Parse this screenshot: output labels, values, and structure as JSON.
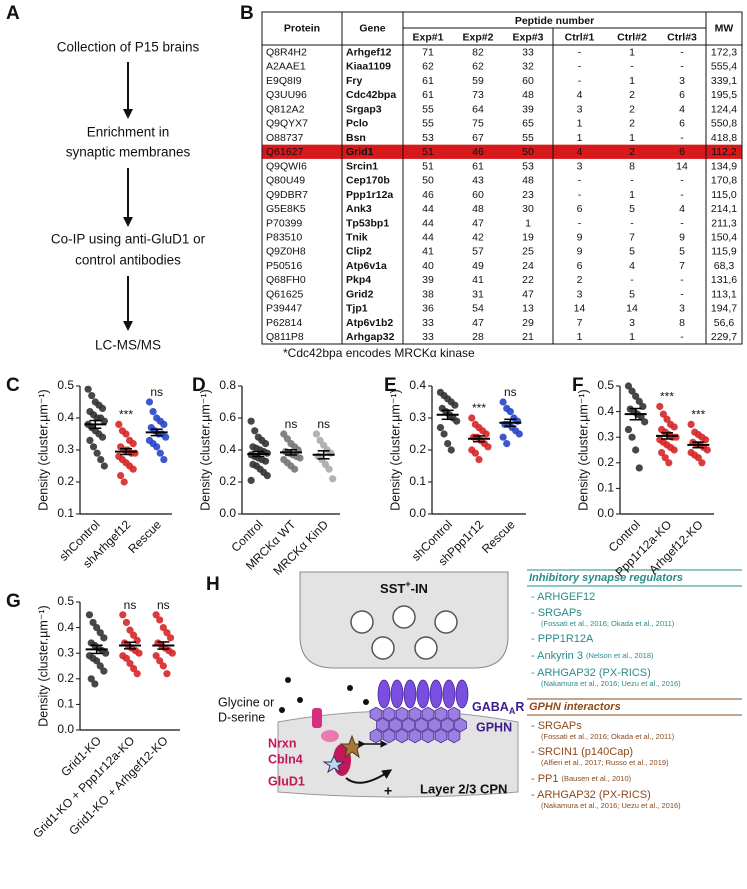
{
  "flow": {
    "label": "A",
    "steps": [
      [
        "Collection of P15 brains"
      ],
      [
        "Enrichment in",
        "synaptic membranes"
      ],
      [
        "Co-IP using anti-GluD1 or",
        "control antibodies"
      ],
      [
        "LC-MS/MS"
      ]
    ]
  },
  "table": {
    "label": "B",
    "group_header": "Peptide number",
    "columns": [
      "Protein",
      "Gene",
      "Exp#1",
      "Exp#2",
      "Exp#3",
      "Ctrl#1",
      "Ctrl#2",
      "Ctrl#3",
      "MW"
    ],
    "highlight_row": 7,
    "highlight_color": "#d7191c",
    "rows": [
      [
        "Q8R4H2",
        "Arhgef12",
        "71",
        "82",
        "33",
        "-",
        "1",
        "-",
        "172,3"
      ],
      [
        "A2AAE1",
        "Kiaa1109",
        "62",
        "62",
        "32",
        "-",
        "-",
        "-",
        "555,4"
      ],
      [
        "E9Q8I9",
        "Fry",
        "61",
        "59",
        "60",
        "-",
        "1",
        "3",
        "339,1"
      ],
      [
        "Q3UU96",
        "Cdc42bpa",
        "61",
        "73",
        "48",
        "4",
        "2",
        "6",
        "195,5"
      ],
      [
        "Q812A2",
        "Srgap3",
        "55",
        "64",
        "39",
        "3",
        "2",
        "4",
        "124,4"
      ],
      [
        "Q9QYX7",
        "Pclo",
        "55",
        "75",
        "65",
        "1",
        "2",
        "6",
        "550,8"
      ],
      [
        "O88737",
        "Bsn",
        "53",
        "67",
        "55",
        "1",
        "1",
        "-",
        "418,8"
      ],
      [
        "Q61627",
        "Grid1",
        "51",
        "46",
        "50",
        "4",
        "2",
        "6",
        "112,2"
      ],
      [
        "Q9QWI6",
        "Srcin1",
        "51",
        "61",
        "53",
        "3",
        "8",
        "14",
        "134,9"
      ],
      [
        "Q80U49",
        "Cep170b",
        "50",
        "43",
        "48",
        "-",
        "-",
        "-",
        "170,8"
      ],
      [
        "Q9DBR7",
        "Ppp1r12a",
        "46",
        "60",
        "23",
        "-",
        "1",
        "-",
        "115,0"
      ],
      [
        "G5E8K5",
        "Ank3",
        "44",
        "48",
        "30",
        "6",
        "5",
        "4",
        "214,1"
      ],
      [
        "P70399",
        "Tp53bp1",
        "44",
        "47",
        "1",
        "-",
        "-",
        "-",
        "211,3"
      ],
      [
        "P83510",
        "Tnik",
        "44",
        "42",
        "19",
        "9",
        "7",
        "9",
        "150,4"
      ],
      [
        "Q9Z0H8",
        "Clip2",
        "41",
        "57",
        "25",
        "9",
        "5",
        "5",
        "115,9"
      ],
      [
        "P50516",
        "Atp6v1a",
        "40",
        "49",
        "24",
        "6",
        "4",
        "7",
        "68,3"
      ],
      [
        "Q68FH0",
        "Pkp4",
        "39",
        "41",
        "22",
        "2",
        "-",
        "-",
        "131,6"
      ],
      [
        "Q61625",
        "Grid2",
        "38",
        "31",
        "47",
        "3",
        "5",
        "-",
        "113,1"
      ],
      [
        "P39447",
        "Tjp1",
        "36",
        "54",
        "13",
        "14",
        "14",
        "3",
        "194,7"
      ],
      [
        "P62814",
        "Atp6v1b2",
        "33",
        "47",
        "29",
        "7",
        "3",
        "8",
        "56,6"
      ],
      [
        "Q811P8",
        "Arhgap32",
        "33",
        "28",
        "21",
        "1",
        "1",
        "-",
        "229,7"
      ]
    ],
    "footnote": "*Cdc42bpa encodes MRCKα kinase"
  },
  "chart_data": [
    {
      "type": "dot",
      "label": "C",
      "ylabel": "Density (cluster.µm⁻¹)",
      "ylim": [
        0.1,
        0.5
      ],
      "yticks": [
        0.1,
        0.2,
        0.3,
        0.4,
        0.5
      ],
      "categories": [
        "shControl",
        "shArhgef12",
        "Rescue"
      ],
      "colors": [
        "#333333",
        "#d62728",
        "#2746c8"
      ],
      "means": [
        0.38,
        0.295,
        0.355
      ],
      "sems": [
        0.012,
        0.009,
        0.01
      ],
      "annotations": [
        null,
        "***",
        "ns"
      ],
      "points": [
        [
          0.49,
          0.47,
          0.45,
          0.44,
          0.43,
          0.42,
          0.41,
          0.4,
          0.4,
          0.39,
          0.38,
          0.37,
          0.36,
          0.35,
          0.34,
          0.33,
          0.31,
          0.29,
          0.27,
          0.25
        ],
        [
          0.38,
          0.36,
          0.35,
          0.33,
          0.32,
          0.31,
          0.3,
          0.3,
          0.29,
          0.29,
          0.28,
          0.27,
          0.26,
          0.25,
          0.24,
          0.22,
          0.2
        ],
        [
          0.45,
          0.42,
          0.4,
          0.39,
          0.38,
          0.37,
          0.36,
          0.35,
          0.35,
          0.34,
          0.33,
          0.32,
          0.31,
          0.29,
          0.27
        ]
      ]
    },
    {
      "type": "dot",
      "label": "D",
      "ylabel": "Density (cluster.µm⁻¹)",
      "ylim": [
        0,
        0.8
      ],
      "yticks": [
        {
          "value": 0,
          "label": "0.0"
        },
        0.2,
        0.4,
        0.6,
        0.8
      ],
      "categories": [
        "Control",
        "MRCKα WT",
        "MRCKα KinD"
      ],
      "colors": [
        "#333333",
        "#777777",
        "#aaaaaa"
      ],
      "means": [
        0.375,
        0.385,
        0.37
      ],
      "sems": [
        0.015,
        0.016,
        0.025
      ],
      "annotations": [
        null,
        "ns",
        "ns"
      ],
      "points": [
        [
          0.58,
          0.52,
          0.48,
          0.46,
          0.44,
          0.42,
          0.41,
          0.4,
          0.39,
          0.38,
          0.37,
          0.36,
          0.35,
          0.34,
          0.33,
          0.31,
          0.3,
          0.28,
          0.26,
          0.24,
          0.21
        ],
        [
          0.5,
          0.47,
          0.44,
          0.42,
          0.4,
          0.39,
          0.38,
          0.37,
          0.36,
          0.35,
          0.34,
          0.32,
          0.3,
          0.28
        ],
        [
          0.5,
          0.46,
          0.43,
          0.4,
          0.38,
          0.36,
          0.34,
          0.31,
          0.28,
          0.22
        ]
      ]
    },
    {
      "type": "dot",
      "label": "E",
      "ylabel": "Density (cluster.µm⁻¹)",
      "ylim": [
        0,
        0.4
      ],
      "yticks": [
        {
          "value": 0,
          "label": "0.0"
        },
        0.1,
        0.2,
        0.3,
        0.4
      ],
      "categories": [
        "shControl",
        "shPpp1r12",
        "Rescue"
      ],
      "colors": [
        "#333333",
        "#d62728",
        "#2746c8"
      ],
      "means": [
        0.31,
        0.235,
        0.285
      ],
      "sems": [
        0.014,
        0.009,
        0.011
      ],
      "annotations": [
        null,
        "***",
        "ns"
      ],
      "points": [
        [
          0.38,
          0.37,
          0.36,
          0.35,
          0.34,
          0.33,
          0.32,
          0.31,
          0.3,
          0.29,
          0.27,
          0.25,
          0.22,
          0.2
        ],
        [
          0.3,
          0.28,
          0.27,
          0.26,
          0.25,
          0.24,
          0.24,
          0.23,
          0.22,
          0.21,
          0.2,
          0.19,
          0.17
        ],
        [
          0.35,
          0.33,
          0.32,
          0.3,
          0.29,
          0.28,
          0.28,
          0.27,
          0.26,
          0.25,
          0.24,
          0.22
        ]
      ]
    },
    {
      "type": "dot",
      "label": "F",
      "ylabel": "Density (cluster.µm⁻¹)",
      "ylim": [
        0,
        0.5
      ],
      "yticks": [
        {
          "value": 0,
          "label": "0.0"
        },
        0.1,
        0.2,
        0.3,
        0.4,
        0.5
      ],
      "categories": [
        "Control",
        "Ppp1r12a-KO",
        "Arhgef12-KO"
      ],
      "colors": [
        "#333333",
        "#d62728",
        "#d62728"
      ],
      "means": [
        0.39,
        0.305,
        0.27
      ],
      "sems": [
        0.022,
        0.012,
        0.011
      ],
      "annotations": [
        null,
        "***",
        "***"
      ],
      "points": [
        [
          0.5,
          0.48,
          0.46,
          0.44,
          0.42,
          0.41,
          0.4,
          0.39,
          0.38,
          0.36,
          0.33,
          0.3,
          0.25,
          0.18
        ],
        [
          0.42,
          0.39,
          0.37,
          0.35,
          0.34,
          0.33,
          0.32,
          0.31,
          0.3,
          0.3,
          0.29,
          0.28,
          0.27,
          0.26,
          0.25,
          0.24,
          0.22,
          0.2
        ],
        [
          0.35,
          0.32,
          0.31,
          0.3,
          0.29,
          0.28,
          0.27,
          0.27,
          0.26,
          0.25,
          0.24,
          0.23,
          0.22,
          0.2
        ]
      ]
    },
    {
      "type": "dot",
      "label": "G",
      "ylabel": "Density (cluster.µm⁻¹)",
      "ylim": [
        0,
        0.5
      ],
      "yticks": [
        {
          "value": 0,
          "label": "0.0"
        },
        0.1,
        0.2,
        0.3,
        0.4,
        0.5
      ],
      "categories": [
        "Grid1-KO",
        "Grid1-KO + Ppp1r12a-KO",
        "Grid1-KO + Arhgef12-KO"
      ],
      "colors": [
        "#333333",
        "#d62728",
        "#d62728"
      ],
      "means": [
        0.315,
        0.33,
        0.33
      ],
      "sems": [
        0.016,
        0.013,
        0.014
      ],
      "annotations": [
        null,
        "ns",
        "ns"
      ],
      "points": [
        [
          0.45,
          0.42,
          0.4,
          0.38,
          0.36,
          0.34,
          0.33,
          0.32,
          0.31,
          0.3,
          0.29,
          0.28,
          0.27,
          0.25,
          0.23,
          0.2,
          0.18
        ],
        [
          0.45,
          0.42,
          0.39,
          0.37,
          0.35,
          0.34,
          0.33,
          0.32,
          0.31,
          0.3,
          0.29,
          0.28,
          0.26,
          0.24,
          0.22
        ],
        [
          0.45,
          0.43,
          0.4,
          0.38,
          0.36,
          0.34,
          0.33,
          0.32,
          0.31,
          0.3,
          0.29,
          0.27,
          0.25,
          0.22
        ]
      ]
    }
  ],
  "diagram": {
    "label": "H",
    "presynaptic": {
      "main": "SST",
      "sup": "+",
      "tail": "-IN"
    },
    "postsynaptic": "Layer 2/3 CPN",
    "ligand": [
      "Glycine or",
      "D-serine"
    ],
    "nrxn": "Nrxn",
    "cbln4": "Cbln4",
    "glud1": "GluD1",
    "receptor": {
      "main": "GABA",
      "sub": "A",
      "tail": "R"
    },
    "scaffold": "GPHN",
    "plus": "+"
  },
  "legend": {
    "regulators": {
      "title": "Inhibitory synapse regulators",
      "items": [
        {
          "name": "- ARHGEF12"
        },
        {
          "name": "- SRGAPs",
          "ref": "(Fossati et al., 2016; Okada et al., 2011)"
        },
        {
          "name": "- PPP1R12A"
        },
        {
          "name": "- Ankyrin 3",
          "ref": "(Nelson et al., 2018)"
        },
        {
          "name": "- ARHGAP32 (PX-RICS)",
          "ref": "(Nakamura et al., 2016; Uezu et al., 2016)"
        }
      ]
    },
    "interactors": {
      "title": "GPHN interactors",
      "items": [
        {
          "name": "- SRGAPs",
          "ref": "(Fossati et al., 2016; Okada et al., 2011)"
        },
        {
          "name": "- SRCIN1 (p140Cap)",
          "ref": "(Alfieri et al., 2017; Russo et al., 2019)"
        },
        {
          "name": "- PP1",
          "ref": "(Bausen et al., 2010)"
        },
        {
          "name": "- ARHGAP32 (PX-RICS)",
          "ref": "(Nakamura et al., 2016; Uezu et al., 2016)"
        }
      ]
    }
  }
}
